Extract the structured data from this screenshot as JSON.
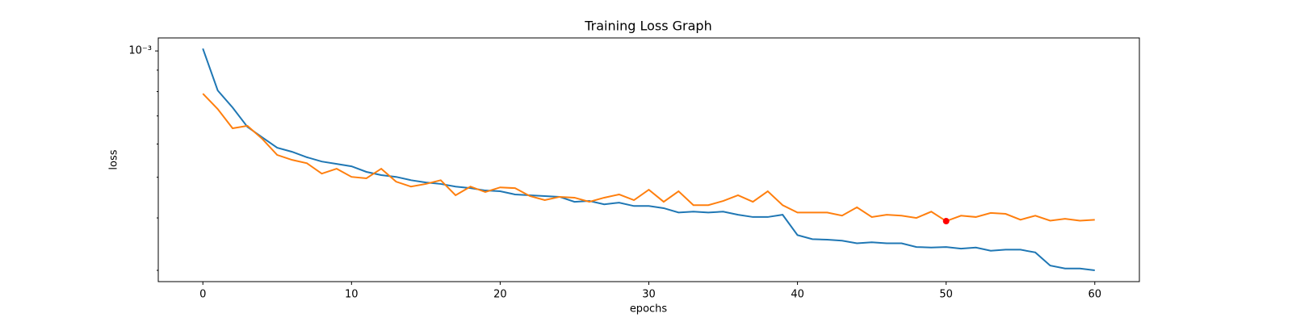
{
  "chart_data": {
    "type": "line",
    "title": "Training Loss Graph",
    "x_label": "epochs",
    "y_label": "loss",
    "x": [
      0,
      1,
      2,
      3,
      4,
      5,
      6,
      7,
      8,
      9,
      10,
      11,
      12,
      13,
      14,
      15,
      16,
      17,
      18,
      19,
      20,
      21,
      22,
      23,
      24,
      25,
      26,
      27,
      28,
      29,
      30,
      31,
      32,
      33,
      34,
      35,
      36,
      37,
      38,
      39,
      40,
      41,
      42,
      43,
      44,
      45,
      46,
      47,
      48,
      49,
      50,
      51,
      52,
      53,
      54,
      55,
      56,
      57,
      58,
      59,
      60
    ],
    "series": [
      {
        "color": "#1f77b4",
        "values": [
          0.001013,
          0.000805,
          0.000733,
          0.000659,
          0.000622,
          0.000588,
          0.000575,
          0.000558,
          0.000545,
          0.000538,
          0.000531,
          0.000515,
          0.000506,
          0.000501,
          0.000492,
          0.000486,
          0.000482,
          0.000475,
          0.000471,
          0.000465,
          0.000463,
          0.000455,
          0.000453,
          0.000451,
          0.000449,
          0.000437,
          0.000439,
          0.000431,
          0.000435,
          0.000427,
          0.000427,
          0.000422,
          0.000412,
          0.000414,
          0.000412,
          0.000414,
          0.000407,
          0.000402,
          0.000402,
          0.000407,
          0.000364,
          0.000356,
          0.000355,
          0.000353,
          0.000348,
          0.00035,
          0.000348,
          0.000348,
          0.000341,
          0.00034,
          0.000341,
          0.000338,
          0.00034,
          0.000334,
          0.000336,
          0.000336,
          0.000331,
          0.000308,
          0.000303,
          0.000303,
          0.0003
        ]
      },
      {
        "color": "#ff7f0e",
        "values": [
          0.000791,
          0.000727,
          0.000654,
          0.000663,
          0.000617,
          0.000565,
          0.00055,
          0.00054,
          0.00051,
          0.000524,
          0.000501,
          0.000497,
          0.000524,
          0.000488,
          0.000475,
          0.000482,
          0.000492,
          0.000453,
          0.000475,
          0.000461,
          0.000473,
          0.000471,
          0.000451,
          0.000441,
          0.000449,
          0.000447,
          0.000437,
          0.000447,
          0.000455,
          0.000441,
          0.000467,
          0.000437,
          0.000463,
          0.000429,
          0.000429,
          0.000439,
          0.000453,
          0.000437,
          0.000463,
          0.000429,
          0.000412,
          0.000412,
          0.000412,
          0.000405,
          0.000424,
          0.000402,
          0.000407,
          0.000405,
          0.0004,
          0.000414,
          0.000393,
          0.000405,
          0.000402,
          0.000411,
          0.000409,
          0.000396,
          0.000405,
          0.000394,
          0.000398,
          0.000394,
          0.000396
        ]
      }
    ],
    "highlight": {
      "x": 50,
      "value": 0.000393,
      "color": "#ff0000"
    },
    "log_y": true,
    "xlim": [
      -3,
      63
    ],
    "xticks": [
      0,
      10,
      20,
      30,
      40,
      50,
      60
    ],
    "ylim": [
      0.000282,
      0.001074
    ],
    "yticks": [
      {
        "value": 0.001,
        "label": "10⁻³"
      }
    ],
    "yminor_ticks": [
      0.0003,
      0.0004,
      0.0005,
      0.0006,
      0.0007,
      0.0008,
      0.0009
    ]
  }
}
